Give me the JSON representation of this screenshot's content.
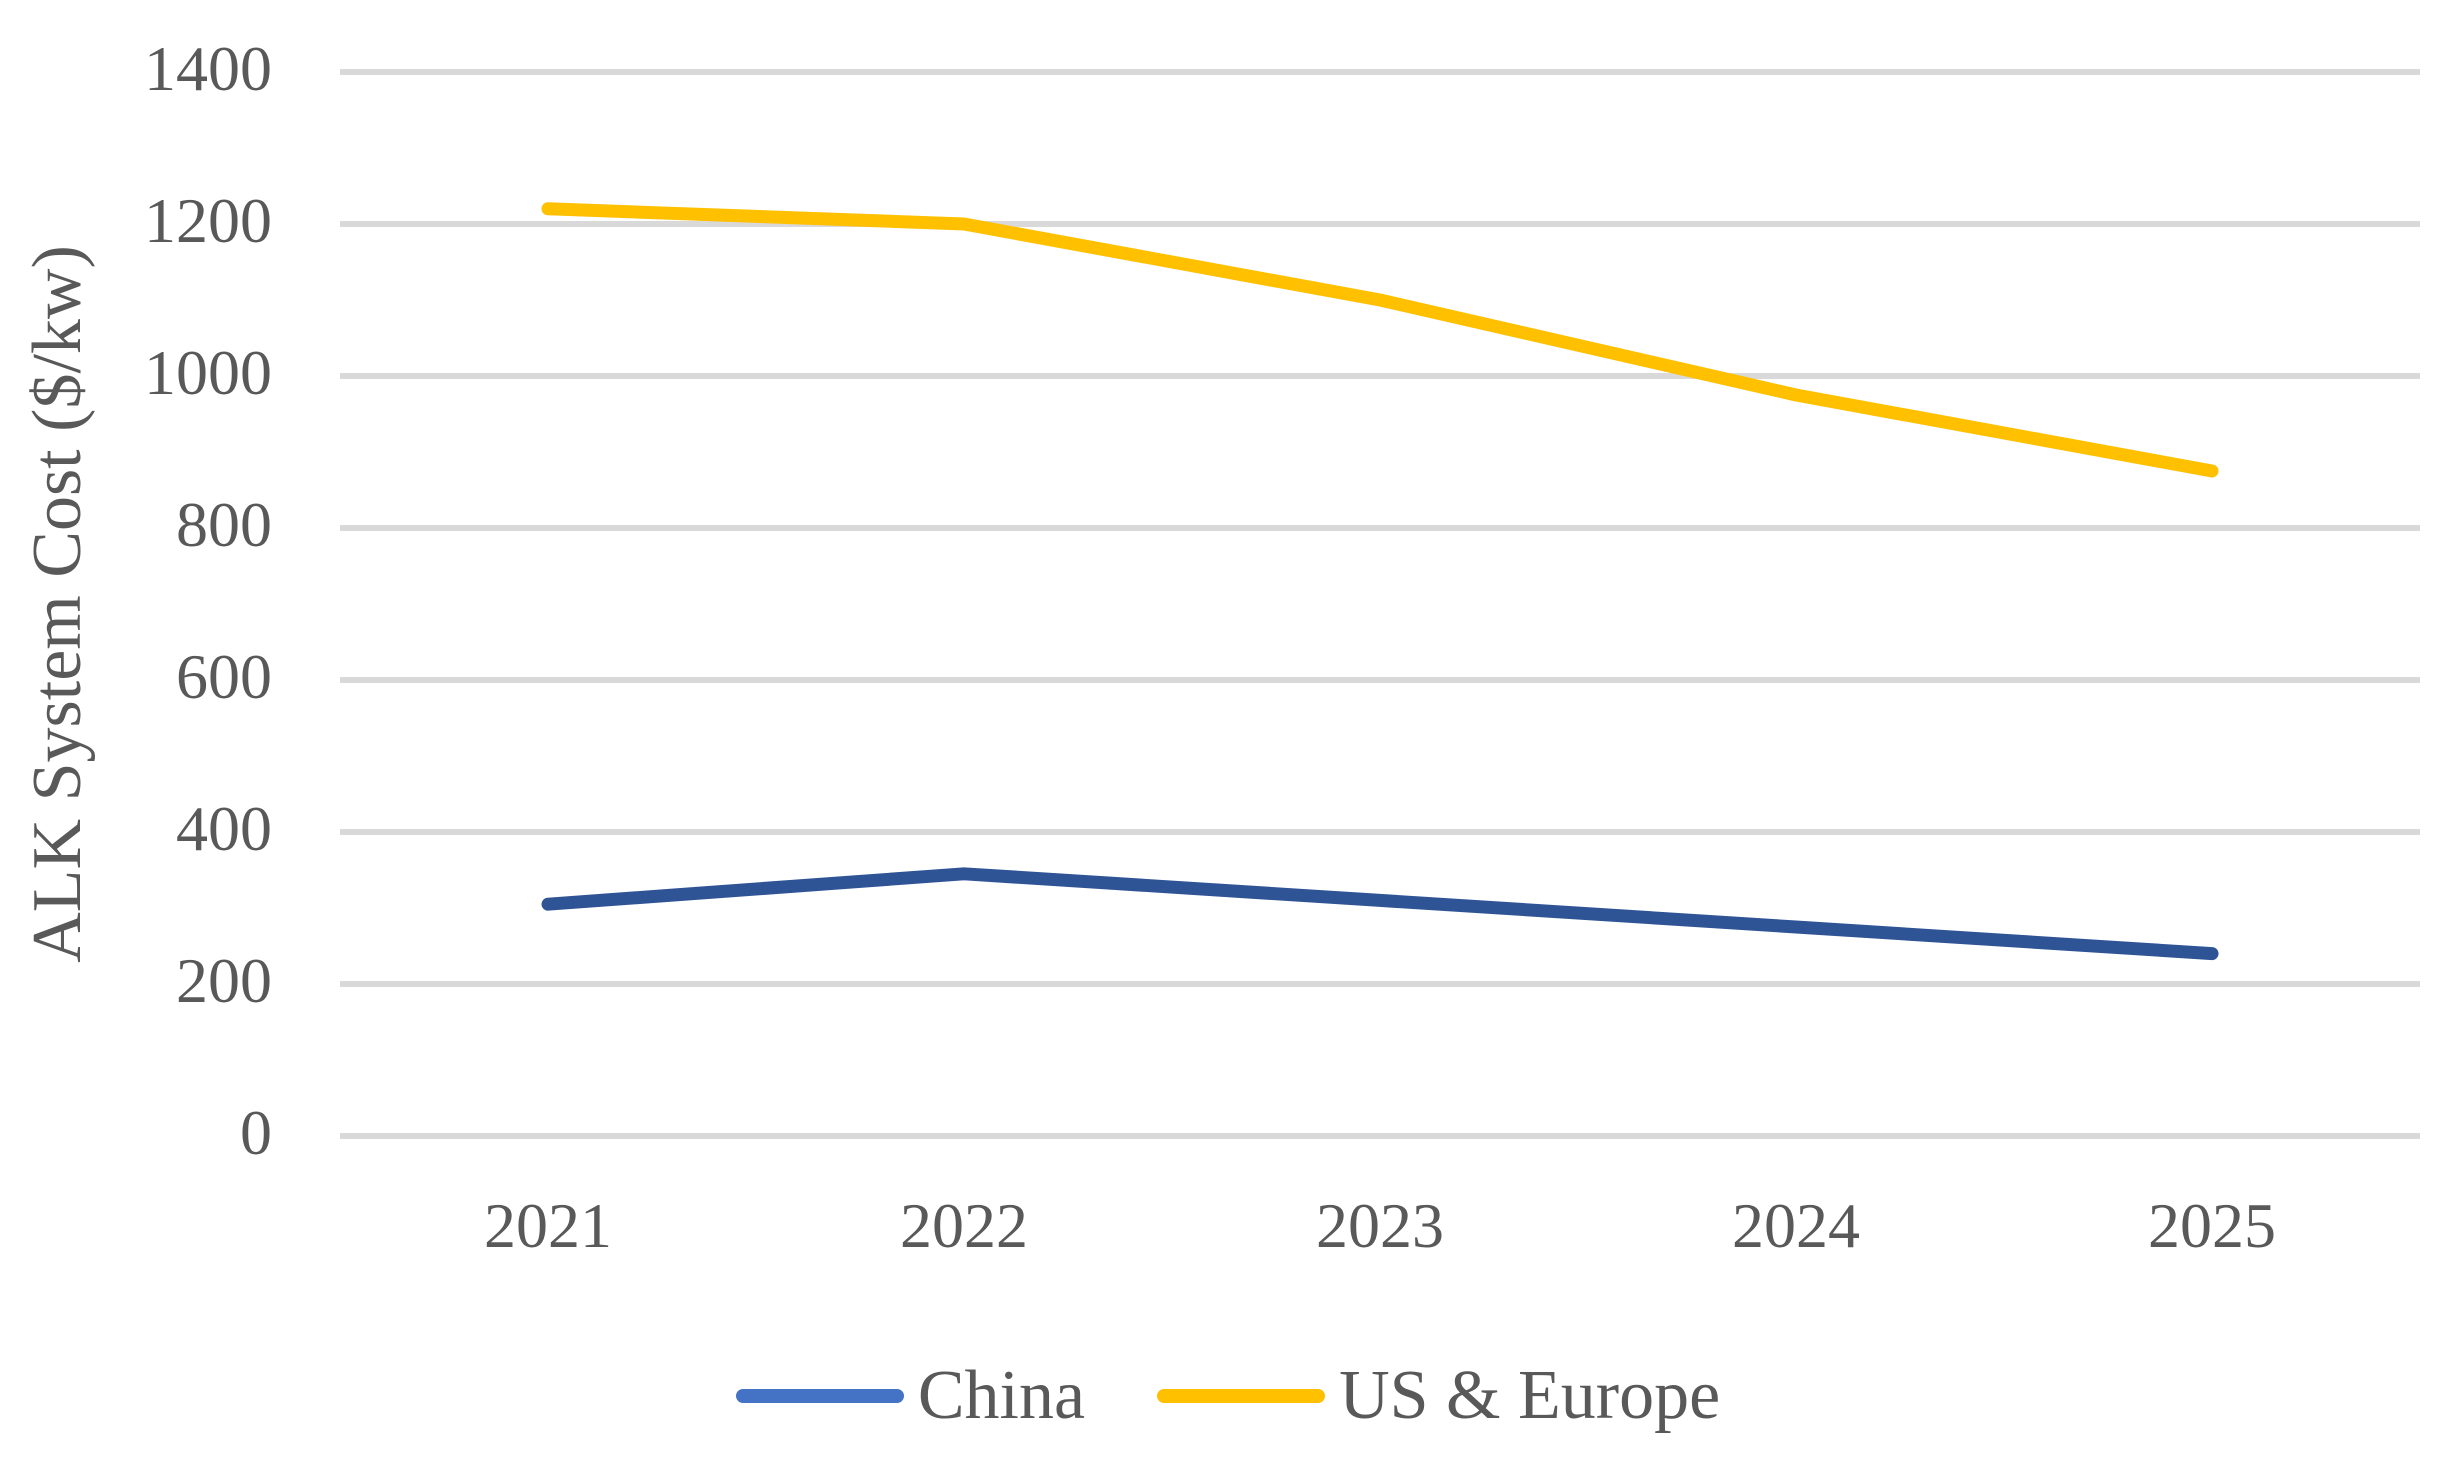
{
  "chart_data": {
    "type": "line",
    "title": "",
    "categories": [
      "2021",
      "2022",
      "2023",
      "2024",
      "2025"
    ],
    "series": [
      {
        "name": "China",
        "values": [
          305,
          345,
          310,
          275,
          240
        ],
        "line_color": "#2F5496",
        "legend_swatch_color": "#4472C4"
      },
      {
        "name": "US & Europe",
        "values": [
          1220,
          1200,
          1100,
          975,
          875
        ],
        "line_color": "#FFC000",
        "legend_swatch_color": "#FFC000"
      }
    ],
    "xlabel": "",
    "ylabel": "ALK System Cost ($/kw)",
    "ylim": [
      0,
      1400
    ],
    "yticks": [
      0,
      200,
      400,
      600,
      800,
      1000,
      1200,
      1400
    ],
    "grid": "horizontal-only",
    "gridline_color": "#D9D9D9",
    "text_color": "#595959",
    "background_color": "#FFFFFF",
    "legend_position": "bottom"
  }
}
